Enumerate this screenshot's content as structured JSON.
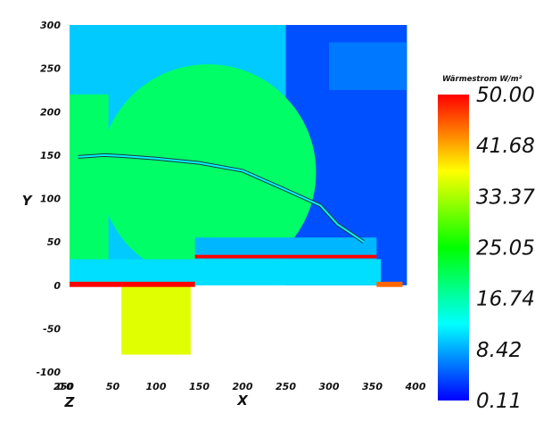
{
  "chart_data": {
    "type": "heatmap",
    "xlabel": "X",
    "ylabel": "Y",
    "zlabel": "Z",
    "xlim": [
      0,
      400
    ],
    "ylim": [
      -100,
      300
    ],
    "x_ticks": [
      "0",
      "50",
      "100",
      "150",
      "200",
      "250",
      "300",
      "350",
      "400"
    ],
    "x_tick_values": [
      0,
      50,
      100,
      150,
      200,
      250,
      300,
      350,
      400
    ],
    "z_ticks": [
      "250",
      "0"
    ],
    "y_ticks": [
      "-100",
      "-50",
      "0",
      "50",
      "100",
      "150",
      "200",
      "250",
      "300"
    ],
    "y_tick_values": [
      -100,
      -50,
      0,
      50,
      100,
      150,
      200,
      250,
      300
    ],
    "colorbar": {
      "title": "Wärmestrom W/m²",
      "min": 0.11,
      "max": 50.0,
      "ticks": [
        "50.00",
        "41.68",
        "33.37",
        "25.05",
        "16.74",
        "8.42",
        "0.11"
      ],
      "tick_values": [
        50.0,
        41.68,
        33.37,
        25.05,
        16.74,
        8.42,
        0.11
      ],
      "colors": [
        "#0000ff",
        "#00ffff",
        "#00ff00",
        "#ffff00",
        "#ff0000"
      ]
    },
    "regions": [
      {
        "name": "room",
        "x": [
          0,
          390
        ],
        "y": [
          0,
          300
        ],
        "value": 10
      },
      {
        "name": "upper-right",
        "x": [
          250,
          390
        ],
        "y": [
          0,
          300
        ],
        "value": 4
      },
      {
        "name": "dome",
        "center": [
          160,
          130
        ],
        "radius": 125,
        "value": 20
      },
      {
        "name": "left-wall-strip",
        "x": [
          0,
          45
        ],
        "y": [
          0,
          220
        ],
        "value": 20
      },
      {
        "name": "floor-band",
        "x": [
          0,
          360
        ],
        "y": [
          0,
          30
        ],
        "value": 11
      },
      {
        "name": "foundation-block",
        "x": [
          60,
          140
        ],
        "y": [
          -80,
          0
        ],
        "value": 36
      },
      {
        "name": "inner-slab",
        "x": [
          145,
          355
        ],
        "y": [
          30,
          55
        ],
        "value": 9
      },
      {
        "name": "top-right-strip",
        "x": [
          300,
          390
        ],
        "y": [
          225,
          280
        ],
        "value": 6
      },
      {
        "name": "floor-edge-left",
        "x": [
          0,
          60
        ],
        "y": [
          -2,
          4
        ],
        "value": 50
      },
      {
        "name": "floor-edge-center",
        "x": [
          60,
          145
        ],
        "y": [
          -2,
          4
        ],
        "value": 50
      },
      {
        "name": "slab-edge",
        "x": [
          145,
          355
        ],
        "y": [
          31,
          35
        ],
        "value": 50
      },
      {
        "name": "right-edge",
        "x": [
          355,
          385
        ],
        "y": [
          -2,
          4
        ],
        "value": 45
      }
    ],
    "curve": {
      "x": [
        10,
        40,
        60,
        100,
        150,
        200,
        250,
        290,
        310,
        340
      ],
      "y": [
        148,
        150,
        149,
        146,
        141,
        132,
        110,
        92,
        70,
        50
      ]
    }
  }
}
